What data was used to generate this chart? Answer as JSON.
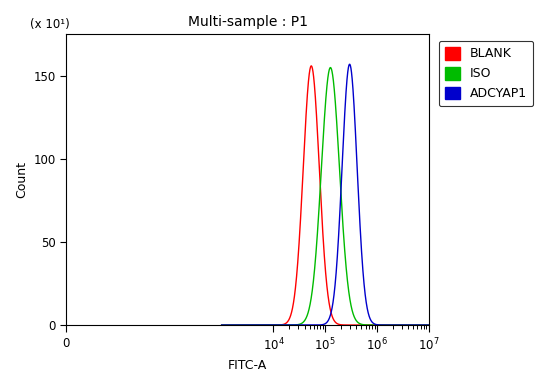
{
  "title": "Multi-sample : P1",
  "xlabel": "FITC-A",
  "ylabel": "Count",
  "ylabel_multiplier": "(x 10¹)",
  "xlim_log": [
    0,
    7
  ],
  "ylim": [
    0,
    175
  ],
  "yticks": [
    0,
    50,
    100,
    150
  ],
  "bg_color": "#ffffff",
  "plot_bg_color": "#ffffff",
  "series": [
    {
      "label": "BLANK",
      "color": "#ff0000",
      "mu_log10": 4.73,
      "sigma_log10": 0.155,
      "peak": 156
    },
    {
      "label": "ISO",
      "color": "#00bb00",
      "mu_log10": 5.1,
      "sigma_log10": 0.175,
      "peak": 155
    },
    {
      "label": "ADCYAP1",
      "color": "#0000cc",
      "mu_log10": 5.47,
      "sigma_log10": 0.145,
      "peak": 157
    }
  ],
  "legend_colors": [
    "#ff0000",
    "#00bb00",
    "#0000cc"
  ],
  "legend_labels": [
    "BLANK",
    "ISO",
    "ADCYAP1"
  ],
  "title_fontsize": 10,
  "axis_fontsize": 9,
  "tick_fontsize": 8.5,
  "legend_fontsize": 9
}
